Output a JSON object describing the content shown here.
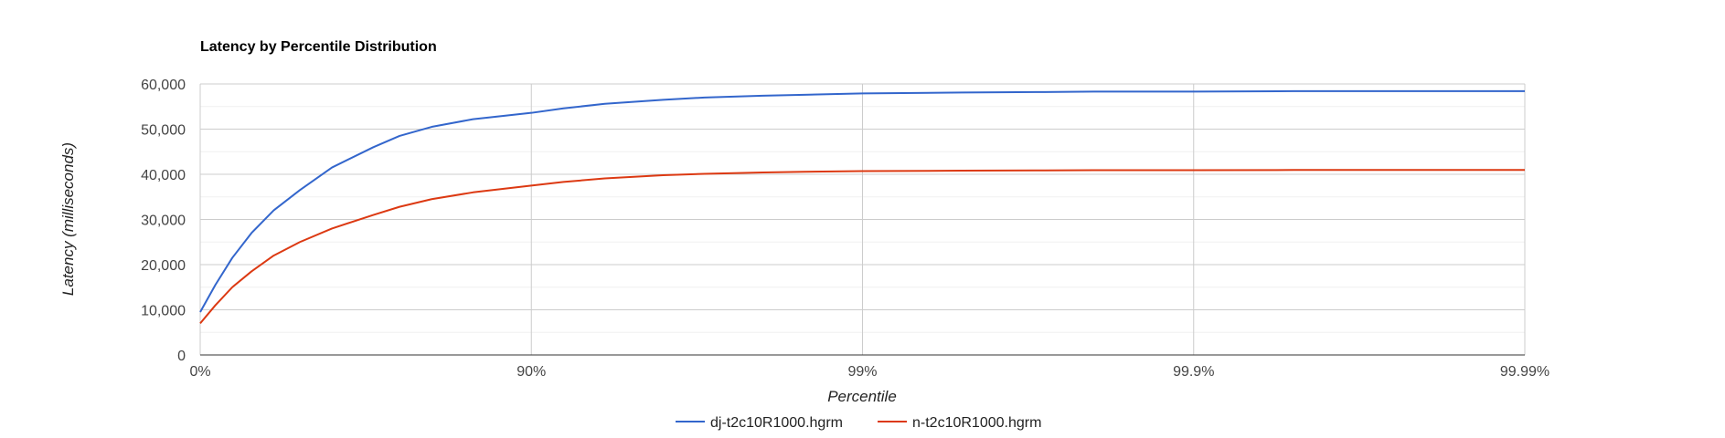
{
  "chart_data": {
    "type": "line",
    "title": "Latency by Percentile Distribution",
    "xlabel": "Percentile",
    "ylabel": "Latency (milliseconds)",
    "x_scale": "log-inverse-percentile",
    "x_ticks": [
      0,
      90,
      99,
      99.9,
      99.99
    ],
    "x_tick_labels": [
      "0%",
      "90%",
      "99%",
      "99.9%",
      "99.99%"
    ],
    "y_ticks": [
      0,
      10000,
      20000,
      30000,
      40000,
      50000,
      60000
    ],
    "y_tick_labels": [
      "0",
      "10,000",
      "20,000",
      "30,000",
      "40,000",
      "50,000",
      "60,000"
    ],
    "ylim": [
      0,
      60000
    ],
    "grid": true,
    "legend_position": "bottom",
    "series": [
      {
        "name": "dj-t2c10R1000.hgrm",
        "color": "#3366cc",
        "points": [
          [
            0,
            9500
          ],
          [
            10,
            15500
          ],
          [
            20,
            21500
          ],
          [
            30,
            27000
          ],
          [
            40,
            32000
          ],
          [
            50,
            36500
          ],
          [
            60,
            41500
          ],
          [
            70,
            46000
          ],
          [
            75,
            48500
          ],
          [
            80,
            50500
          ],
          [
            85,
            52200
          ],
          [
            90,
            53600
          ],
          [
            92,
            54600
          ],
          [
            94,
            55600
          ],
          [
            96,
            56500
          ],
          [
            97,
            57000
          ],
          [
            98,
            57400
          ],
          [
            98.5,
            57600
          ],
          [
            99,
            57900
          ],
          [
            99.5,
            58100
          ],
          [
            99.7,
            58200
          ],
          [
            99.8,
            58300
          ],
          [
            99.9,
            58300
          ],
          [
            99.95,
            58400
          ],
          [
            99.97,
            58400
          ],
          [
            99.99,
            58400
          ]
        ]
      },
      {
        "name": "n-t2c10R1000.hgrm",
        "color": "#dc3912",
        "points": [
          [
            0,
            7000
          ],
          [
            10,
            11000
          ],
          [
            20,
            15000
          ],
          [
            30,
            18500
          ],
          [
            40,
            22000
          ],
          [
            50,
            25000
          ],
          [
            60,
            28000
          ],
          [
            70,
            31000
          ],
          [
            75,
            32800
          ],
          [
            80,
            34500
          ],
          [
            85,
            36000
          ],
          [
            90,
            37500
          ],
          [
            92,
            38300
          ],
          [
            94,
            39100
          ],
          [
            96,
            39800
          ],
          [
            97,
            40100
          ],
          [
            98,
            40400
          ],
          [
            98.5,
            40550
          ],
          [
            99,
            40700
          ],
          [
            99.5,
            40800
          ],
          [
            99.7,
            40850
          ],
          [
            99.8,
            40900
          ],
          [
            99.9,
            40900
          ],
          [
            99.95,
            40950
          ],
          [
            99.97,
            40950
          ],
          [
            99.99,
            40950
          ]
        ]
      }
    ]
  }
}
